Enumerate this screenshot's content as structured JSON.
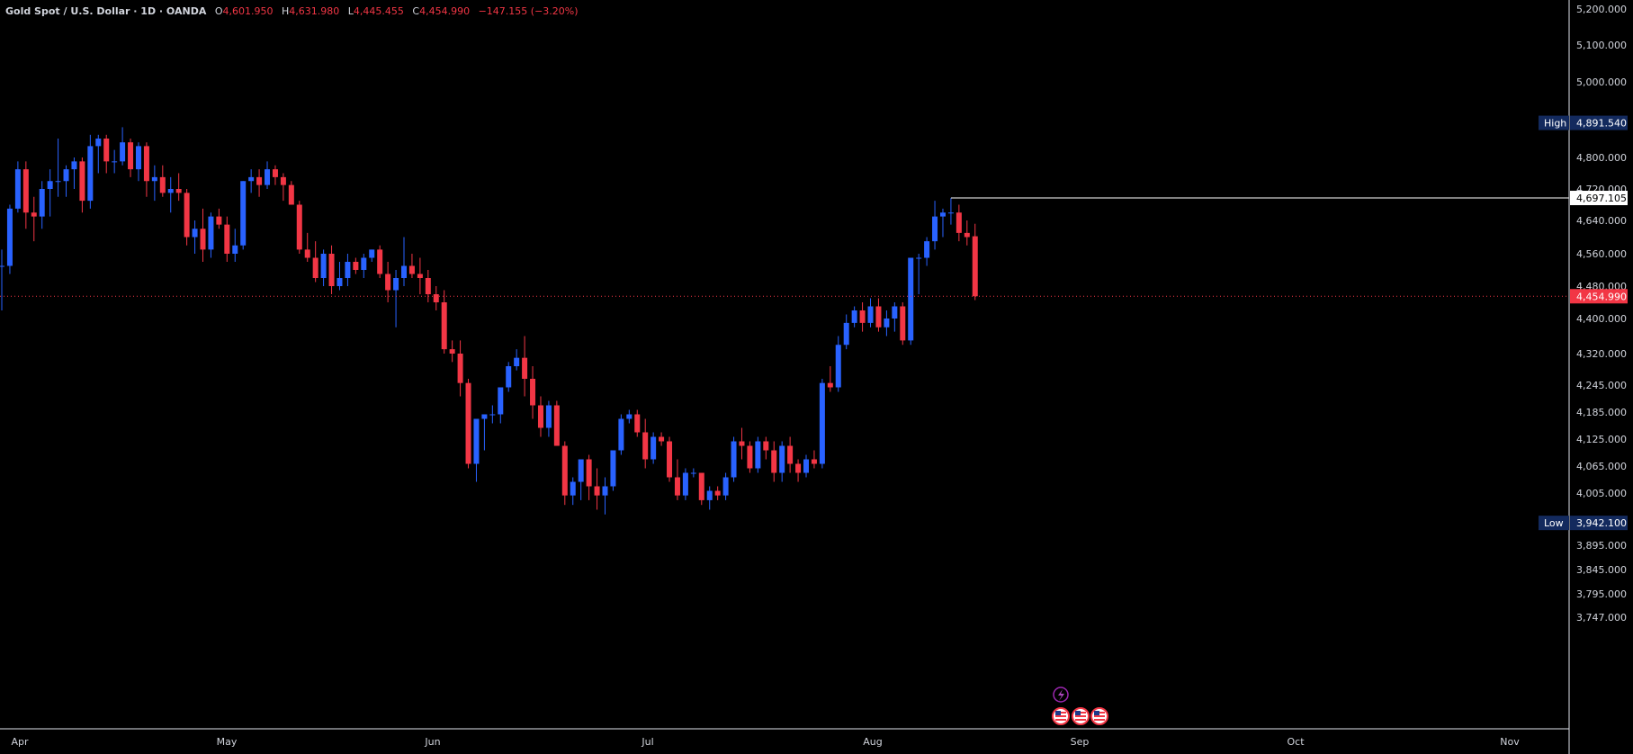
{
  "header": {
    "symbol": "Gold Spot / U.S. Dollar · 1D · OANDA",
    "open_label": "O",
    "open": "4,601.950",
    "high_label": "H",
    "high": "4,631.980",
    "low_label": "L",
    "low": "4,445.455",
    "close_label": "C",
    "close": "4,454.990",
    "change": "−147.155 (−3.20%)"
  },
  "colors": {
    "background": "#000000",
    "up": "#2962ff",
    "down": "#f23645",
    "axis_text": "#d1d4dc",
    "high_low_badge": "#132a5e",
    "price_badge": "#f23645"
  },
  "markers": {
    "high_label": "High",
    "high_value": "4,891.540",
    "low_label": "Low",
    "low_value": "3,942.100",
    "line_value": "4,697.105",
    "last_price": "4,454.990"
  },
  "event_icons": [
    "lightning-icon",
    "us-flag-icon",
    "us-flag-icon",
    "us-flag-icon"
  ],
  "chart_data": {
    "type": "candlestick",
    "y_axis_ticks": [
      "5,200.000",
      "5,100.000",
      "5,000.000",
      "4,800.000",
      "4,720.000",
      "4,640.000",
      "4,560.000",
      "4,480.000",
      "4,400.000",
      "4,320.000",
      "4,245.000",
      "4,185.000",
      "4,125.000",
      "4,065.000",
      "4,005.000",
      "3,895.000",
      "3,845.000",
      "3,795.000",
      "3,747.000"
    ],
    "x_axis_ticks": [
      "Apr",
      "May",
      "Jun",
      "Jul",
      "Aug",
      "Sep",
      "Oct",
      "Nov"
    ],
    "series": [
      {
        "o": 4530,
        "h": 4570,
        "l": 4420,
        "c": 4530
      },
      {
        "o": 4530,
        "h": 4680,
        "l": 4510,
        "c": 4670
      },
      {
        "o": 4670,
        "h": 4790,
        "l": 4660,
        "c": 4770
      },
      {
        "o": 4770,
        "h": 4790,
        "l": 4620,
        "c": 4660
      },
      {
        "o": 4660,
        "h": 4700,
        "l": 4590,
        "c": 4650
      },
      {
        "o": 4650,
        "h": 4740,
        "l": 4620,
        "c": 4720
      },
      {
        "o": 4720,
        "h": 4770,
        "l": 4650,
        "c": 4740
      },
      {
        "o": 4740,
        "h": 4850,
        "l": 4700,
        "c": 4740
      },
      {
        "o": 4740,
        "h": 4780,
        "l": 4700,
        "c": 4770
      },
      {
        "o": 4770,
        "h": 4800,
        "l": 4720,
        "c": 4790
      },
      {
        "o": 4790,
        "h": 4800,
        "l": 4660,
        "c": 4690
      },
      {
        "o": 4690,
        "h": 4860,
        "l": 4670,
        "c": 4830
      },
      {
        "o": 4830,
        "h": 4860,
        "l": 4760,
        "c": 4850
      },
      {
        "o": 4850,
        "h": 4860,
        "l": 4760,
        "c": 4790
      },
      {
        "o": 4790,
        "h": 4820,
        "l": 4760,
        "c": 4790
      },
      {
        "o": 4790,
        "h": 4880,
        "l": 4780,
        "c": 4840
      },
      {
        "o": 4840,
        "h": 4850,
        "l": 4750,
        "c": 4770
      },
      {
        "o": 4770,
        "h": 4840,
        "l": 4740,
        "c": 4830
      },
      {
        "o": 4830,
        "h": 4840,
        "l": 4700,
        "c": 4740
      },
      {
        "o": 4740,
        "h": 4780,
        "l": 4690,
        "c": 4750
      },
      {
        "o": 4750,
        "h": 4780,
        "l": 4700,
        "c": 4710
      },
      {
        "o": 4710,
        "h": 4750,
        "l": 4660,
        "c": 4720
      },
      {
        "o": 4720,
        "h": 4760,
        "l": 4690,
        "c": 4710
      },
      {
        "o": 4710,
        "h": 4720,
        "l": 4580,
        "c": 4600
      },
      {
        "o": 4600,
        "h": 4640,
        "l": 4560,
        "c": 4620
      },
      {
        "o": 4620,
        "h": 4670,
        "l": 4540,
        "c": 4570
      },
      {
        "o": 4570,
        "h": 4660,
        "l": 4550,
        "c": 4650
      },
      {
        "o": 4650,
        "h": 4670,
        "l": 4620,
        "c": 4630
      },
      {
        "o": 4630,
        "h": 4650,
        "l": 4540,
        "c": 4560
      },
      {
        "o": 4560,
        "h": 4620,
        "l": 4540,
        "c": 4580
      },
      {
        "o": 4580,
        "h": 4740,
        "l": 4570,
        "c": 4740
      },
      {
        "o": 4740,
        "h": 4770,
        "l": 4710,
        "c": 4750
      },
      {
        "o": 4750,
        "h": 4770,
        "l": 4700,
        "c": 4730
      },
      {
        "o": 4730,
        "h": 4790,
        "l": 4720,
        "c": 4770
      },
      {
        "o": 4770,
        "h": 4780,
        "l": 4730,
        "c": 4750
      },
      {
        "o": 4750,
        "h": 4760,
        "l": 4690,
        "c": 4730
      },
      {
        "o": 4730,
        "h": 4740,
        "l": 4680,
        "c": 4680
      },
      {
        "o": 4680,
        "h": 4690,
        "l": 4560,
        "c": 4570
      },
      {
        "o": 4570,
        "h": 4610,
        "l": 4540,
        "c": 4550
      },
      {
        "o": 4550,
        "h": 4590,
        "l": 4490,
        "c": 4500
      },
      {
        "o": 4500,
        "h": 4570,
        "l": 4480,
        "c": 4560
      },
      {
        "o": 4560,
        "h": 4580,
        "l": 4460,
        "c": 4480
      },
      {
        "o": 4480,
        "h": 4540,
        "l": 4470,
        "c": 4500
      },
      {
        "o": 4500,
        "h": 4560,
        "l": 4480,
        "c": 4540
      },
      {
        "o": 4540,
        "h": 4550,
        "l": 4510,
        "c": 4520
      },
      {
        "o": 4520,
        "h": 4560,
        "l": 4500,
        "c": 4550
      },
      {
        "o": 4550,
        "h": 4570,
        "l": 4540,
        "c": 4570
      },
      {
        "o": 4570,
        "h": 4580,
        "l": 4500,
        "c": 4510
      },
      {
        "o": 4510,
        "h": 4540,
        "l": 4440,
        "c": 4470
      },
      {
        "o": 4470,
        "h": 4520,
        "l": 4380,
        "c": 4500
      },
      {
        "o": 4500,
        "h": 4600,
        "l": 4480,
        "c": 4530
      },
      {
        "o": 4530,
        "h": 4560,
        "l": 4500,
        "c": 4510
      },
      {
        "o": 4510,
        "h": 4550,
        "l": 4460,
        "c": 4500
      },
      {
        "o": 4500,
        "h": 4520,
        "l": 4440,
        "c": 4460
      },
      {
        "o": 4460,
        "h": 4480,
        "l": 4420,
        "c": 4440
      },
      {
        "o": 4440,
        "h": 4470,
        "l": 4320,
        "c": 4330
      },
      {
        "o": 4330,
        "h": 4350,
        "l": 4300,
        "c": 4320
      },
      {
        "o": 4320,
        "h": 4350,
        "l": 4220,
        "c": 4250
      },
      {
        "o": 4250,
        "h": 4260,
        "l": 4060,
        "c": 4070
      },
      {
        "o": 4070,
        "h": 4170,
        "l": 4030,
        "c": 4170
      },
      {
        "o": 4170,
        "h": 4180,
        "l": 4100,
        "c": 4180
      },
      {
        "o": 4180,
        "h": 4200,
        "l": 4160,
        "c": 4180
      },
      {
        "o": 4180,
        "h": 4240,
        "l": 4160,
        "c": 4240
      },
      {
        "o": 4240,
        "h": 4300,
        "l": 4230,
        "c": 4290
      },
      {
        "o": 4290,
        "h": 4330,
        "l": 4280,
        "c": 4310
      },
      {
        "o": 4310,
        "h": 4360,
        "l": 4220,
        "c": 4260
      },
      {
        "o": 4260,
        "h": 4290,
        "l": 4170,
        "c": 4200
      },
      {
        "o": 4200,
        "h": 4220,
        "l": 4130,
        "c": 4150
      },
      {
        "o": 4150,
        "h": 4210,
        "l": 4130,
        "c": 4200
      },
      {
        "o": 4200,
        "h": 4210,
        "l": 4110,
        "c": 4110
      },
      {
        "o": 4110,
        "h": 4120,
        "l": 3980,
        "c": 4000
      },
      {
        "o": 4000,
        "h": 4040,
        "l": 3980,
        "c": 4030
      },
      {
        "o": 4030,
        "h": 4080,
        "l": 3990,
        "c": 4080
      },
      {
        "o": 4080,
        "h": 4090,
        "l": 3990,
        "c": 4020
      },
      {
        "o": 4020,
        "h": 4060,
        "l": 3970,
        "c": 4000
      },
      {
        "o": 4000,
        "h": 4040,
        "l": 3960,
        "c": 4020
      },
      {
        "o": 4020,
        "h": 4100,
        "l": 4010,
        "c": 4100
      },
      {
        "o": 4100,
        "h": 4180,
        "l": 4090,
        "c": 4170
      },
      {
        "o": 4170,
        "h": 4190,
        "l": 4160,
        "c": 4180
      },
      {
        "o": 4180,
        "h": 4190,
        "l": 4130,
        "c": 4140
      },
      {
        "o": 4140,
        "h": 4170,
        "l": 4060,
        "c": 4080
      },
      {
        "o": 4080,
        "h": 4140,
        "l": 4070,
        "c": 4130
      },
      {
        "o": 4130,
        "h": 4140,
        "l": 4110,
        "c": 4120
      },
      {
        "o": 4120,
        "h": 4130,
        "l": 4030,
        "c": 4040
      },
      {
        "o": 4040,
        "h": 4080,
        "l": 3990,
        "c": 4000
      },
      {
        "o": 4000,
        "h": 4060,
        "l": 3990,
        "c": 4050
      },
      {
        "o": 4050,
        "h": 4060,
        "l": 4040,
        "c": 4050
      },
      {
        "o": 4050,
        "h": 4050,
        "l": 3980,
        "c": 3990
      },
      {
        "o": 3990,
        "h": 4020,
        "l": 3970,
        "c": 4010
      },
      {
        "o": 4010,
        "h": 4020,
        "l": 3990,
        "c": 4000
      },
      {
        "o": 4000,
        "h": 4050,
        "l": 3990,
        "c": 4040
      },
      {
        "o": 4040,
        "h": 4130,
        "l": 4030,
        "c": 4120
      },
      {
        "o": 4120,
        "h": 4150,
        "l": 4080,
        "c": 4110
      },
      {
        "o": 4110,
        "h": 4120,
        "l": 4050,
        "c": 4060
      },
      {
        "o": 4060,
        "h": 4130,
        "l": 4050,
        "c": 4120
      },
      {
        "o": 4120,
        "h": 4130,
        "l": 4080,
        "c": 4100
      },
      {
        "o": 4100,
        "h": 4120,
        "l": 4030,
        "c": 4050
      },
      {
        "o": 4050,
        "h": 4120,
        "l": 4030,
        "c": 4110
      },
      {
        "o": 4110,
        "h": 4130,
        "l": 4050,
        "c": 4070
      },
      {
        "o": 4070,
        "h": 4080,
        "l": 4030,
        "c": 4050
      },
      {
        "o": 4050,
        "h": 4090,
        "l": 4040,
        "c": 4080
      },
      {
        "o": 4080,
        "h": 4100,
        "l": 4060,
        "c": 4070
      },
      {
        "o": 4070,
        "h": 4260,
        "l": 4060,
        "c": 4250
      },
      {
        "o": 4250,
        "h": 4290,
        "l": 4230,
        "c": 4240
      },
      {
        "o": 4240,
        "h": 4360,
        "l": 4230,
        "c": 4340
      },
      {
        "o": 4340,
        "h": 4410,
        "l": 4330,
        "c": 4390
      },
      {
        "o": 4390,
        "h": 4430,
        "l": 4380,
        "c": 4420
      },
      {
        "o": 4420,
        "h": 4440,
        "l": 4370,
        "c": 4390
      },
      {
        "o": 4390,
        "h": 4450,
        "l": 4380,
        "c": 4430
      },
      {
        "o": 4430,
        "h": 4450,
        "l": 4370,
        "c": 4380
      },
      {
        "o": 4380,
        "h": 4420,
        "l": 4360,
        "c": 4400
      },
      {
        "o": 4400,
        "h": 4440,
        "l": 4370,
        "c": 4430
      },
      {
        "o": 4430,
        "h": 4440,
        "l": 4340,
        "c": 4350
      },
      {
        "o": 4350,
        "h": 4550,
        "l": 4340,
        "c": 4550
      },
      {
        "o": 4550,
        "h": 4560,
        "l": 4460,
        "c": 4550
      },
      {
        "o": 4550,
        "h": 4600,
        "l": 4530,
        "c": 4590
      },
      {
        "o": 4590,
        "h": 4690,
        "l": 4570,
        "c": 4650
      },
      {
        "o": 4650,
        "h": 4670,
        "l": 4600,
        "c": 4660
      },
      {
        "o": 4660,
        "h": 4697.105,
        "l": 4630,
        "c": 4660
      },
      {
        "o": 4660,
        "h": 4680,
        "l": 4590,
        "c": 4610
      },
      {
        "o": 4610,
        "h": 4640,
        "l": 4580,
        "c": 4600
      },
      {
        "o": 4601.95,
        "h": 4631.98,
        "l": 4445.455,
        "c": 4454.99
      }
    ]
  }
}
